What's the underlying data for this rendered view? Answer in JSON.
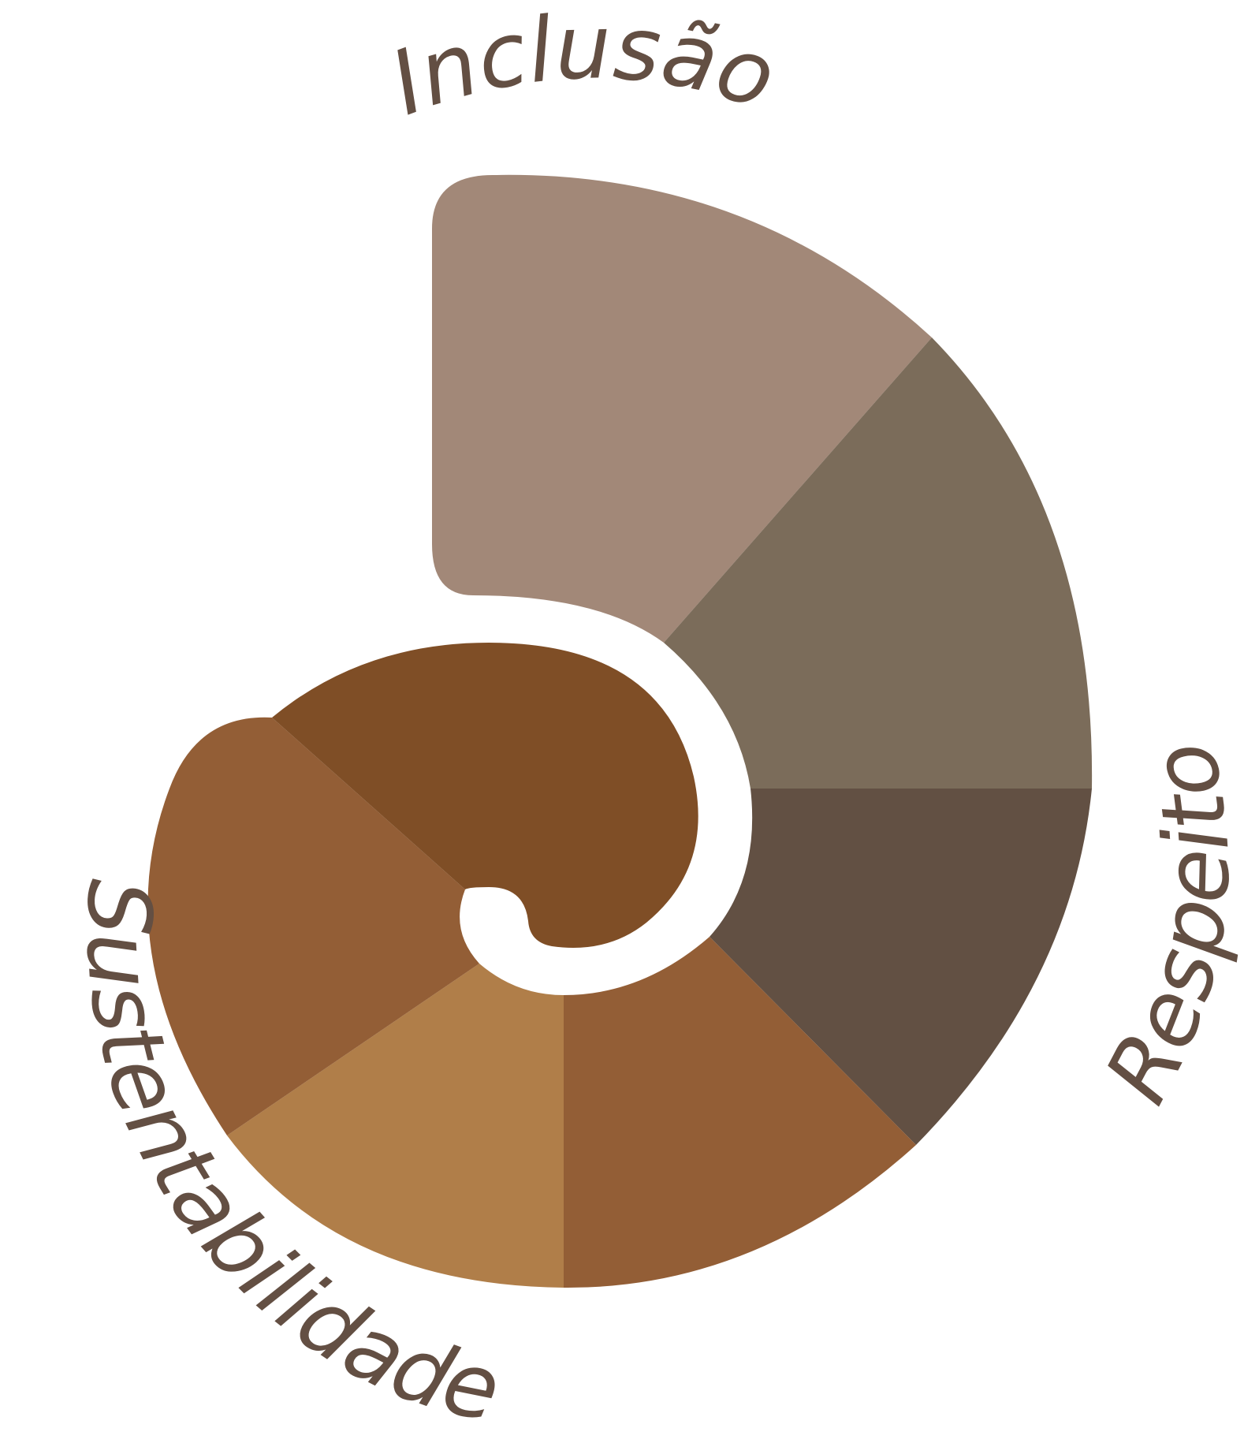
{
  "background": "#ffffff",
  "text_color": "#634f43",
  "labels": {
    "top": "Inclusão",
    "right": "Respeito",
    "left": "Sustentabilidade"
  },
  "shell_colors": {
    "outer_top": "#a28878",
    "outer_right_upper": "#7b6c5a",
    "outer_right_lower": "#625043",
    "bottom_right": "#935e36",
    "bottom_left": "#b07e49",
    "left": "#935e36",
    "inner": "#7f4e26"
  }
}
